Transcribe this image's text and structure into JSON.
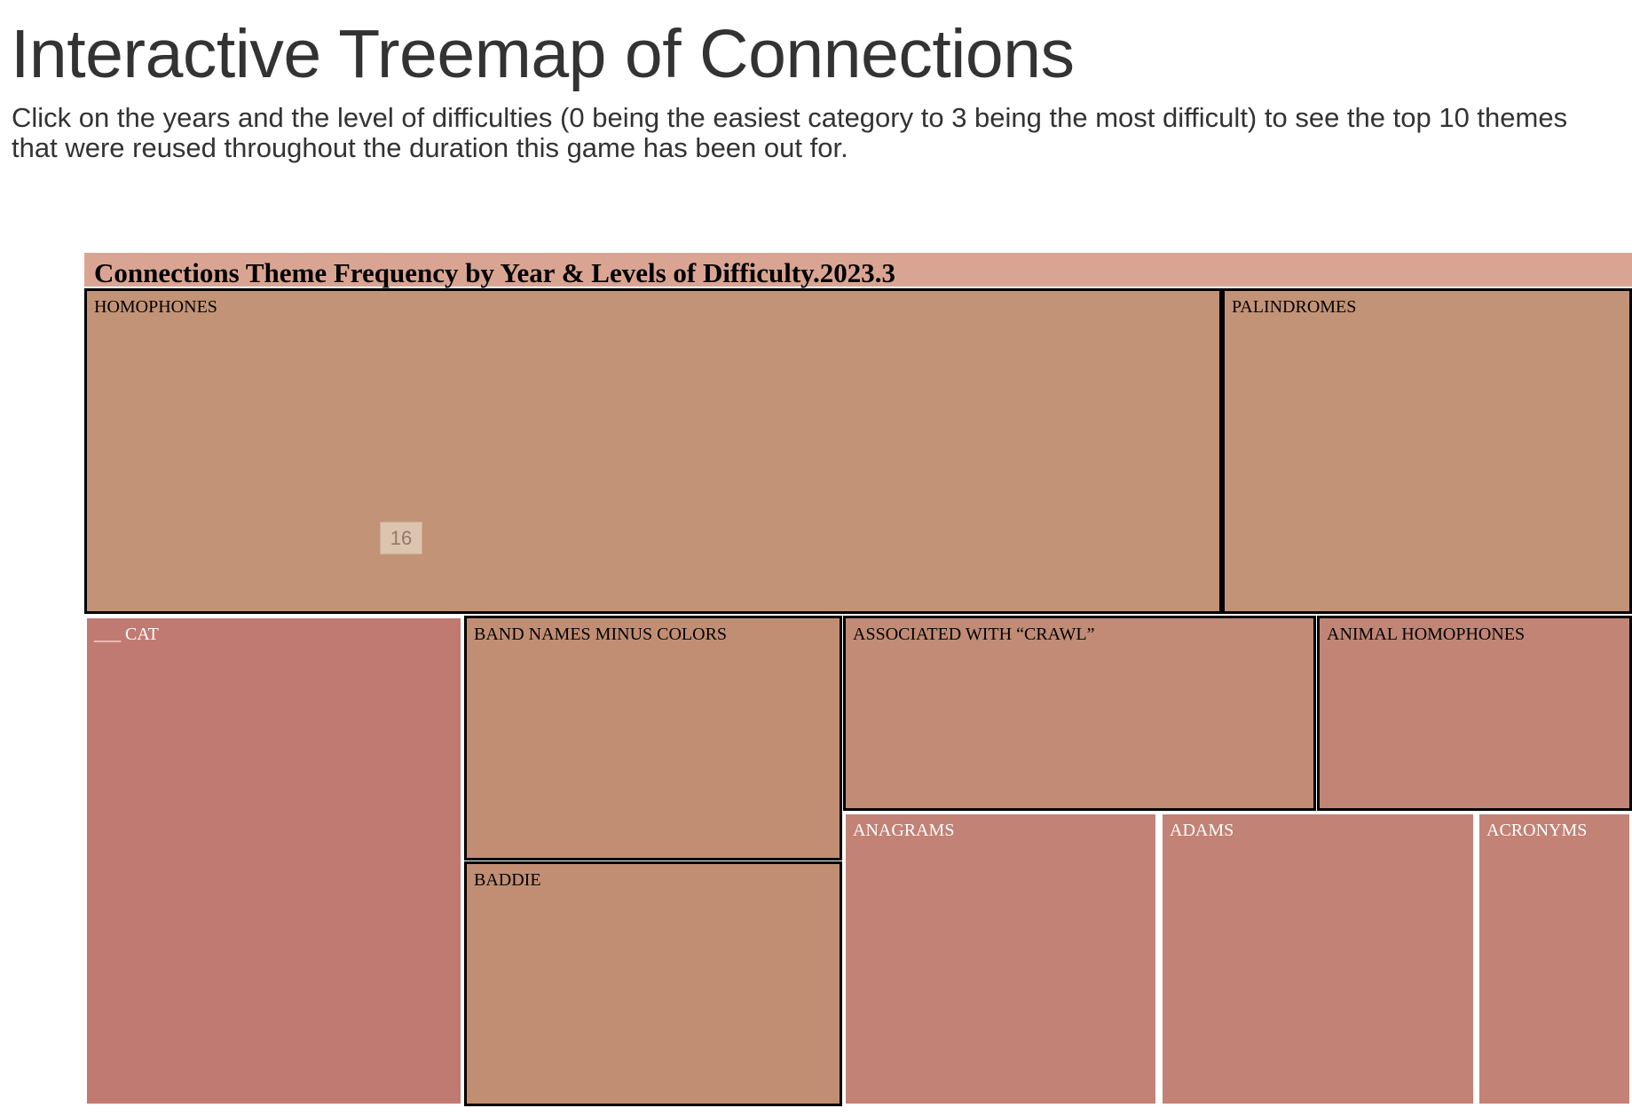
{
  "page": {
    "title": "Interactive Treemap of Connections",
    "description": "Click on the years and the level of difficulties (0 being the easiest category to 3 being the most difficult) to see the top 10 themes that were reused throughout the duration this game has been out for."
  },
  "tooltip": {
    "value": "16"
  },
  "chart_data": {
    "type": "treemap",
    "title": "Connections Theme Frequency by Year & Levels of Difficulty.2023.3",
    "colors": {
      "header": "#d9a592",
      "warm_tan": "#c29376",
      "tan": "#c28d74",
      "rose": "#c17b72",
      "light_rose": "#c28375",
      "border_dark": "#000000",
      "border_light": "#ffffff"
    },
    "themes": [
      {
        "name": "HOMOPHONES",
        "value": 16,
        "color": "#c29376",
        "label_color": "#000000",
        "border": "#000000"
      },
      {
        "name": "PALINDROMES",
        "value": 4.6,
        "color": "#c29376",
        "label_color": "#000000",
        "border": "#000000"
      },
      {
        "name": "___ CAT",
        "value": 7,
        "color": "#c17a72",
        "label_color": "#ffffff",
        "border": "#ffffff"
      },
      {
        "name": "BAND NAMES MINUS COLORS",
        "value": 3.5,
        "color": "#c28e73",
        "label_color": "#000000",
        "border": "#000000"
      },
      {
        "name": "BADDIE",
        "value": 3.5,
        "color": "#c28e73",
        "label_color": "#000000",
        "border": "#000000"
      },
      {
        "name": "ASSOCIATED WITH “CRAWL”",
        "value": 3.5,
        "color": "#c18b75",
        "label_color": "#000000",
        "border": "#000000"
      },
      {
        "name": "ANIMAL HOMOPHONES",
        "value": 2.4,
        "color": "#c18575",
        "label_color": "#000000",
        "border": "#000000"
      },
      {
        "name": "ANAGRAMS",
        "value": 3.5,
        "color": "#c28275",
        "label_color": "#ffffff",
        "border": "#ffffff"
      },
      {
        "name": "ADAMS",
        "value": 3.5,
        "color": "#c28275",
        "label_color": "#ffffff",
        "border": "#ffffff"
      },
      {
        "name": "ACRONYMS",
        "value": 1.8,
        "color": "#c28275",
        "label_color": "#ffffff",
        "border": "#ffffff"
      }
    ]
  }
}
